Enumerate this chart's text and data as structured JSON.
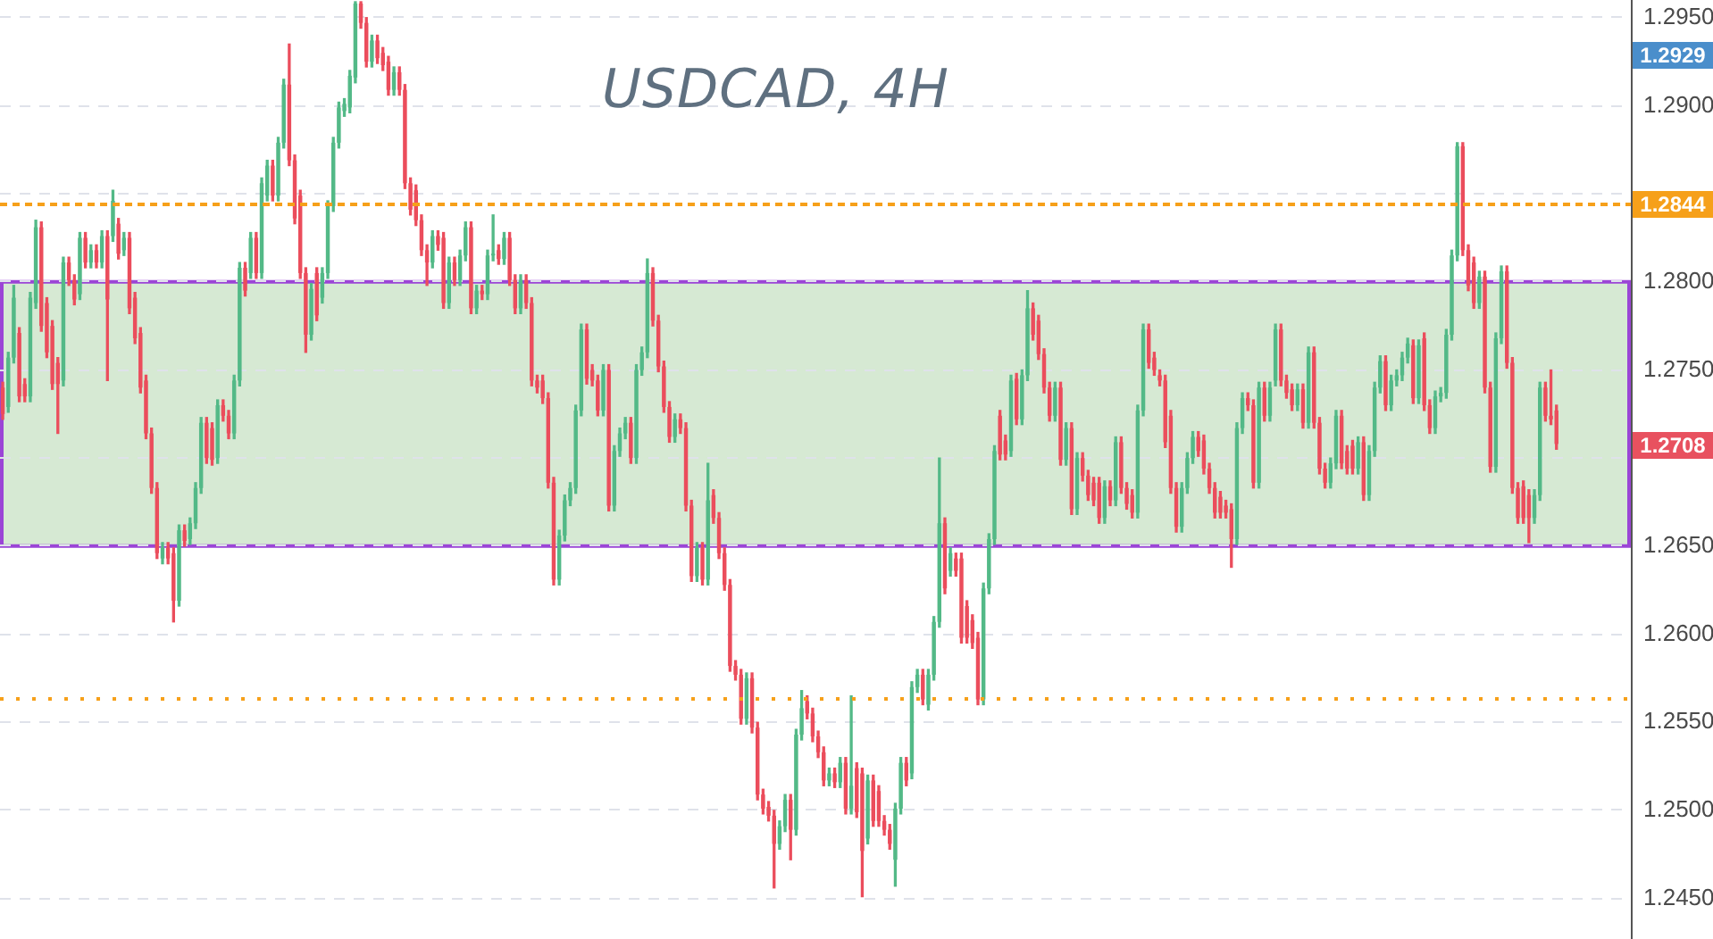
{
  "chart_data": {
    "type": "candlestick",
    "title": "USDCAD, 4H",
    "categories": [
      null,
      null,
      null,
      null,
      null,
      null,
      null,
      null,
      null,
      null,
      null,
      null,
      null,
      null,
      null,
      null,
      null,
      null,
      null,
      null,
      null,
      null,
      null,
      null,
      null,
      null,
      null,
      null,
      null,
      null,
      null,
      null,
      null,
      null,
      null,
      null,
      null,
      null,
      null,
      null,
      null,
      null,
      null,
      null,
      null,
      null,
      null,
      null,
      null,
      null,
      null,
      null,
      null,
      null,
      null,
      null,
      null,
      null,
      null,
      null,
      null,
      null,
      null,
      null,
      null,
      null,
      null,
      null,
      null,
      null,
      null,
      null,
      null,
      null,
      null,
      null,
      null,
      null,
      null,
      null,
      null,
      null,
      null,
      null,
      null,
      null,
      null,
      null,
      null,
      null,
      null,
      null,
      null,
      null,
      null,
      null,
      null,
      null,
      null,
      null,
      null,
      null,
      null,
      null,
      null,
      null,
      null,
      null,
      null,
      null,
      null,
      null,
      null,
      null,
      null,
      null,
      null,
      null,
      null,
      null,
      null,
      null,
      null,
      null,
      null,
      null,
      null,
      null,
      null,
      null,
      null,
      null,
      null,
      null,
      null,
      null,
      null,
      null,
      null,
      null,
      null,
      null,
      null,
      null,
      null,
      null,
      null,
      null,
      null,
      null,
      null,
      null,
      null,
      null,
      null,
      null,
      null,
      null,
      null,
      null,
      null,
      null,
      null,
      null,
      null,
      null,
      null,
      null,
      null,
      null,
      null,
      null,
      null,
      null,
      null,
      null,
      null,
      null,
      null,
      null,
      null,
      null,
      null,
      null,
      null,
      null,
      null,
      null,
      null,
      null,
      null,
      null,
      null,
      null,
      null,
      null,
      null,
      null,
      null,
      null,
      null,
      null,
      null,
      null,
      null,
      null,
      null,
      null,
      null,
      null,
      null,
      null,
      null,
      null,
      null,
      null,
      null,
      null,
      null,
      null,
      null,
      null,
      null,
      null,
      null,
      null,
      null,
      null,
      null,
      null,
      null,
      null,
      null,
      null,
      null,
      null,
      null,
      null,
      null,
      null,
      null,
      null,
      null,
      null,
      null,
      null,
      null,
      null,
      null,
      null,
      null,
      null,
      null,
      null,
      null,
      null,
      null,
      null,
      null,
      null,
      null,
      null,
      null,
      null,
      null,
      null,
      null,
      null,
      null,
      null,
      null,
      null,
      null,
      null,
      null,
      null,
      null,
      null,
      null,
      null,
      null,
      null,
      null,
      null,
      null,
      null,
      null,
      null,
      null,
      null,
      null,
      null,
      null,
      null,
      null,
      null
    ],
    "ohlc": [
      [
        1.274,
        1.2743,
        1.2722,
        1.2725
      ],
      [
        1.2729,
        1.276,
        1.2726,
        1.2757
      ],
      [
        1.2757,
        1.2798,
        1.2754,
        1.2791
      ],
      [
        1.2771,
        1.2774,
        1.2732,
        1.2735
      ],
      [
        1.2742,
        1.2745,
        1.2732,
        1.2735
      ],
      [
        1.2735,
        1.2794,
        1.2732,
        1.2791
      ],
      [
        1.2788,
        1.2835,
        1.2785,
        1.2831
      ],
      [
        1.2831,
        1.2834,
        1.2772,
        1.2775
      ],
      [
        1.2788,
        1.2791,
        1.2757,
        1.276
      ],
      [
        1.2775,
        1.2778,
        1.2739,
        1.2742
      ],
      [
        1.2754,
        1.2757,
        1.2714,
        1.2742
      ],
      [
        1.2744,
        1.2814,
        1.2741,
        1.2811
      ],
      [
        1.2811,
        1.2814,
        1.2798,
        1.2801
      ],
      [
        1.2801,
        1.2804,
        1.2787,
        1.279
      ],
      [
        1.2793,
        1.2828,
        1.279,
        1.2825
      ],
      [
        1.2825,
        1.2828,
        1.2808,
        1.2811
      ],
      [
        1.2811,
        1.2821,
        1.2808,
        1.2818
      ],
      [
        1.2818,
        1.2821,
        1.2808,
        1.2811
      ],
      [
        1.2811,
        1.2829,
        1.2808,
        1.2826
      ],
      [
        1.2826,
        1.2829,
        1.2744,
        1.279
      ],
      [
        1.2826,
        1.2852,
        1.2823,
        1.2846
      ],
      [
        1.2833,
        1.2836,
        1.2813,
        1.2816
      ],
      [
        1.2818,
        1.2828,
        1.2815,
        1.2825
      ],
      [
        1.2825,
        1.2828,
        1.2782,
        1.2785
      ],
      [
        1.2791,
        1.2794,
        1.2765,
        1.2768
      ],
      [
        1.2771,
        1.2774,
        1.2737,
        1.274
      ],
      [
        1.2744,
        1.2747,
        1.2711,
        1.2714
      ],
      [
        1.2714,
        1.2717,
        1.268,
        1.2683
      ],
      [
        1.2683,
        1.2686,
        1.2643,
        1.2646
      ],
      [
        1.2643,
        1.2652,
        1.264,
        1.2649
      ],
      [
        1.2649,
        1.2652,
        1.264,
        1.2643
      ],
      [
        1.2646,
        1.2649,
        1.2607,
        1.2619
      ],
      [
        1.2619,
        1.2662,
        1.2616,
        1.2659
      ],
      [
        1.2659,
        1.2662,
        1.265,
        1.2653
      ],
      [
        1.2654,
        1.2666,
        1.2651,
        1.2663
      ],
      [
        1.2663,
        1.2686,
        1.266,
        1.2683
      ],
      [
        1.2683,
        1.2723,
        1.268,
        1.272
      ],
      [
        1.272,
        1.2723,
        1.2697,
        1.27
      ],
      [
        1.2717,
        1.272,
        1.2696,
        1.2699
      ],
      [
        1.27,
        1.2733,
        1.2697,
        1.273
      ],
      [
        1.273,
        1.2733,
        1.2721,
        1.2724
      ],
      [
        1.2724,
        1.2727,
        1.2711,
        1.2714
      ],
      [
        1.2714,
        1.2747,
        1.2711,
        1.2744
      ],
      [
        1.2744,
        1.2811,
        1.2741,
        1.2808
      ],
      [
        1.2808,
        1.2811,
        1.2792,
        1.2795
      ],
      [
        1.2805,
        1.2828,
        1.2802,
        1.2825
      ],
      [
        1.2825,
        1.2828,
        1.2802,
        1.2805
      ],
      [
        1.2805,
        1.2859,
        1.2802,
        1.2856
      ],
      [
        1.2849,
        1.2869,
        1.2846,
        1.2866
      ],
      [
        1.2866,
        1.2869,
        1.2846,
        1.2849
      ],
      [
        1.2849,
        1.2882,
        1.2846,
        1.2879
      ],
      [
        1.2879,
        1.2915,
        1.2876,
        1.2912
      ],
      [
        1.2912,
        1.2935,
        1.2866,
        1.2869
      ],
      [
        1.2869,
        1.2872,
        1.2833,
        1.2836
      ],
      [
        1.2849,
        1.2852,
        1.2802,
        1.2805
      ],
      [
        1.2805,
        1.2808,
        1.276,
        1.277
      ],
      [
        1.277,
        1.2799,
        1.2767,
        1.2796
      ],
      [
        1.2805,
        1.2808,
        1.2778,
        1.2781
      ],
      [
        1.2791,
        1.2808,
        1.2788,
        1.2805
      ],
      [
        1.2805,
        1.2846,
        1.2802,
        1.2843
      ],
      [
        1.2843,
        1.2882,
        1.284,
        1.2879
      ],
      [
        1.2879,
        1.2902,
        1.2876,
        1.2899
      ],
      [
        1.2897,
        1.2904,
        1.2894,
        1.2901
      ],
      [
        1.2899,
        1.292,
        1.2896,
        1.2917
      ],
      [
        1.2916,
        1.2959,
        1.2913,
        1.2958
      ],
      [
        1.2958,
        1.2959,
        1.2944,
        1.2947
      ],
      [
        1.2947,
        1.295,
        1.2922,
        1.2925
      ],
      [
        1.2925,
        1.294,
        1.2922,
        1.2937
      ],
      [
        1.2937,
        1.294,
        1.2924,
        1.2927
      ],
      [
        1.293,
        1.2933,
        1.292,
        1.2923
      ],
      [
        1.2925,
        1.2928,
        1.2906,
        1.2909
      ],
      [
        1.2909,
        1.2922,
        1.2906,
        1.2919
      ],
      [
        1.2919,
        1.2922,
        1.2906,
        1.2909
      ],
      [
        1.2909,
        1.2912,
        1.2853,
        1.2856
      ],
      [
        1.2856,
        1.2859,
        1.2838,
        1.2841
      ],
      [
        1.2852,
        1.2855,
        1.2832,
        1.2835
      ],
      [
        1.2835,
        1.2838,
        1.2815,
        1.2818
      ],
      [
        1.2818,
        1.2821,
        1.2798,
        1.2811
      ],
      [
        1.2811,
        1.2829,
        1.2808,
        1.2826
      ],
      [
        1.2826,
        1.2829,
        1.2818,
        1.2821
      ],
      [
        1.2825,
        1.2828,
        1.2785,
        1.2788
      ],
      [
        1.2788,
        1.2814,
        1.2785,
        1.2811
      ],
      [
        1.2811,
        1.2814,
        1.2798,
        1.2801
      ],
      [
        1.2801,
        1.2818,
        1.2798,
        1.2815
      ],
      [
        1.2815,
        1.2834,
        1.2812,
        1.2831
      ],
      [
        1.2831,
        1.2834,
        1.2782,
        1.2785
      ],
      [
        1.2785,
        1.2798,
        1.2782,
        1.2795
      ],
      [
        1.2795,
        1.2798,
        1.279,
        1.2793
      ],
      [
        1.2793,
        1.2818,
        1.279,
        1.2815
      ],
      [
        1.2815,
        1.2838,
        1.2812,
        1.2816
      ],
      [
        1.2818,
        1.2821,
        1.281,
        1.2813
      ],
      [
        1.2813,
        1.2828,
        1.281,
        1.2825
      ],
      [
        1.2825,
        1.2828,
        1.2798,
        1.2801
      ],
      [
        1.2801,
        1.2804,
        1.2782,
        1.2785
      ],
      [
        1.2785,
        1.2804,
        1.2782,
        1.2801
      ],
      [
        1.2801,
        1.2804,
        1.2785,
        1.2788
      ],
      [
        1.2788,
        1.2791,
        1.2741,
        1.2744
      ],
      [
        1.2744,
        1.2747,
        1.2737,
        1.274
      ],
      [
        1.2744,
        1.2747,
        1.2731,
        1.2734
      ],
      [
        1.2734,
        1.2737,
        1.2683,
        1.2686
      ],
      [
        1.2686,
        1.2689,
        1.2628,
        1.2631
      ],
      [
        1.2631,
        1.2659,
        1.2628,
        1.2656
      ],
      [
        1.2656,
        1.2679,
        1.2653,
        1.2676
      ],
      [
        1.2676,
        1.2686,
        1.2673,
        1.2683
      ],
      [
        1.2683,
        1.273,
        1.268,
        1.2727
      ],
      [
        1.2727,
        1.2776,
        1.2724,
        1.2773
      ],
      [
        1.2773,
        1.2776,
        1.2742,
        1.2745
      ],
      [
        1.275,
        1.2753,
        1.2741,
        1.2744
      ],
      [
        1.2744,
        1.2747,
        1.2724,
        1.2727
      ],
      [
        1.2727,
        1.2753,
        1.2724,
        1.275
      ],
      [
        1.275,
        1.2753,
        1.267,
        1.2673
      ],
      [
        1.2673,
        1.2707,
        1.267,
        1.2704
      ],
      [
        1.2704,
        1.2717,
        1.2701,
        1.2714
      ],
      [
        1.2714,
        1.2723,
        1.2711,
        1.272
      ],
      [
        1.272,
        1.2723,
        1.2697,
        1.27
      ],
      [
        1.27,
        1.2753,
        1.2697,
        1.275
      ],
      [
        1.275,
        1.2763,
        1.2747,
        1.276
      ],
      [
        1.276,
        1.2813,
        1.2757,
        1.2805
      ],
      [
        1.2805,
        1.2808,
        1.2775,
        1.2778
      ],
      [
        1.2778,
        1.2781,
        1.2749,
        1.2752
      ],
      [
        1.2752,
        1.2755,
        1.2726,
        1.2729
      ],
      [
        1.2729,
        1.2732,
        1.2709,
        1.2712
      ],
      [
        1.2712,
        1.2725,
        1.2709,
        1.2722
      ],
      [
        1.2722,
        1.2725,
        1.2714,
        1.2717
      ],
      [
        1.2717,
        1.272,
        1.267,
        1.2673
      ],
      [
        1.2673,
        1.2676,
        1.263,
        1.2633
      ],
      [
        1.2633,
        1.2652,
        1.263,
        1.2649
      ],
      [
        1.2649,
        1.2652,
        1.2628,
        1.2631
      ],
      [
        1.2631,
        1.2697,
        1.2628,
        1.2676
      ],
      [
        1.2679,
        1.2682,
        1.2663,
        1.2666
      ],
      [
        1.2666,
        1.2669,
        1.2643,
        1.2646
      ],
      [
        1.2646,
        1.2649,
        1.2625,
        1.2628
      ],
      [
        1.2628,
        1.2631,
        1.2579,
        1.2582
      ],
      [
        1.2582,
        1.2585,
        1.2574,
        1.2577
      ],
      [
        1.2577,
        1.258,
        1.2549,
        1.2552
      ],
      [
        1.2552,
        1.2578,
        1.2549,
        1.2575
      ],
      [
        1.2575,
        1.2578,
        1.2544,
        1.2547
      ],
      [
        1.2547,
        1.255,
        1.2506,
        1.2509
      ],
      [
        1.2509,
        1.2512,
        1.2498,
        1.2501
      ],
      [
        1.2502,
        1.2505,
        1.2494,
        1.2497
      ],
      [
        1.2497,
        1.25,
        1.2456,
        1.2481
      ],
      [
        1.2481,
        1.2494,
        1.2478,
        1.2491
      ],
      [
        1.2491,
        1.2509,
        1.2488,
        1.2506
      ],
      [
        1.2506,
        1.2509,
        1.2472,
        1.2489
      ],
      [
        1.2489,
        1.2546,
        1.2486,
        1.2543
      ],
      [
        1.2543,
        1.2568,
        1.254,
        1.2558
      ],
      [
        1.2562,
        1.2565,
        1.2552,
        1.2555
      ],
      [
        1.2555,
        1.2558,
        1.2539,
        1.2542
      ],
      [
        1.2542,
        1.2545,
        1.253,
        1.2533
      ],
      [
        1.2533,
        1.2536,
        1.2514,
        1.2517
      ],
      [
        1.2517,
        1.2524,
        1.2514,
        1.2521
      ],
      [
        1.2521,
        1.2524,
        1.2513,
        1.2516
      ],
      [
        1.2516,
        1.253,
        1.2513,
        1.2527
      ],
      [
        1.2527,
        1.253,
        1.2498,
        1.2501
      ],
      [
        1.2501,
        1.2565,
        1.2498,
        1.2514
      ],
      [
        1.2524,
        1.2527,
        1.2496,
        1.2499
      ],
      [
        1.2521,
        1.2524,
        1.2451,
        1.2477
      ],
      [
        1.2484,
        1.252,
        1.2481,
        1.2517
      ],
      [
        1.2517,
        1.252,
        1.2491,
        1.2494
      ],
      [
        1.2511,
        1.2514,
        1.2491,
        1.2494
      ],
      [
        1.2494,
        1.2497,
        1.2486,
        1.2489
      ],
      [
        1.2489,
        1.2492,
        1.2478,
        1.2481
      ],
      [
        1.2472,
        1.2504,
        1.2457,
        1.2501
      ],
      [
        1.2501,
        1.253,
        1.2498,
        1.2527
      ],
      [
        1.2527,
        1.253,
        1.2514,
        1.2517
      ],
      [
        1.2521,
        1.2573,
        1.2518,
        1.257
      ],
      [
        1.257,
        1.258,
        1.2567,
        1.2577
      ],
      [
        1.2577,
        1.258,
        1.256,
        1.2563
      ],
      [
        1.256,
        1.258,
        1.2557,
        1.2577
      ],
      [
        1.2577,
        1.261,
        1.2574,
        1.2607
      ],
      [
        1.2607,
        1.27,
        1.2604,
        1.2663
      ],
      [
        1.2663,
        1.2666,
        1.2623,
        1.2626
      ],
      [
        1.2636,
        1.2649,
        1.2633,
        1.2646
      ],
      [
        1.2643,
        1.2646,
        1.2633,
        1.2636
      ],
      [
        1.2643,
        1.2646,
        1.2595,
        1.2598
      ],
      [
        1.2616,
        1.2619,
        1.2595,
        1.2598
      ],
      [
        1.2608,
        1.2611,
        1.2592,
        1.2595
      ],
      [
        1.2598,
        1.2601,
        1.256,
        1.2563
      ],
      [
        1.2563,
        1.2629,
        1.256,
        1.2626
      ],
      [
        1.2626,
        1.2657,
        1.2623,
        1.2654
      ],
      [
        1.2654,
        1.2707,
        1.2651,
        1.2704
      ],
      [
        1.2724,
        1.2727,
        1.2699,
        1.2702
      ],
      [
        1.271,
        1.2713,
        1.2699,
        1.2702
      ],
      [
        1.2704,
        1.2747,
        1.2701,
        1.2744
      ],
      [
        1.2745,
        1.2748,
        1.2719,
        1.2722
      ],
      [
        1.2722,
        1.275,
        1.2719,
        1.2747
      ],
      [
        1.2747,
        1.2795,
        1.2744,
        1.2785
      ],
      [
        1.2785,
        1.2788,
        1.2767,
        1.277
      ],
      [
        1.2778,
        1.2781,
        1.2756,
        1.2759
      ],
      [
        1.2759,
        1.2762,
        1.2737,
        1.274
      ],
      [
        1.274,
        1.2743,
        1.2721,
        1.2724
      ],
      [
        1.2724,
        1.2743,
        1.2721,
        1.274
      ],
      [
        1.274,
        1.2743,
        1.2696,
        1.2699
      ],
      [
        1.2699,
        1.272,
        1.2696,
        1.2717
      ],
      [
        1.2717,
        1.272,
        1.2668,
        1.2671
      ],
      [
        1.2671,
        1.2703,
        1.2668,
        1.27
      ],
      [
        1.27,
        1.2703,
        1.2687,
        1.269
      ],
      [
        1.269,
        1.2693,
        1.2676,
        1.2679
      ],
      [
        1.2686,
        1.2689,
        1.2673,
        1.2676
      ],
      [
        1.2686,
        1.2689,
        1.2663,
        1.2666
      ],
      [
        1.2666,
        1.2687,
        1.2663,
        1.2684
      ],
      [
        1.2684,
        1.2687,
        1.2673,
        1.2676
      ],
      [
        1.2676,
        1.2712,
        1.2673,
        1.2709
      ],
      [
        1.2709,
        1.2712,
        1.268,
        1.2683
      ],
      [
        1.2683,
        1.2686,
        1.2671,
        1.2674
      ],
      [
        1.2679,
        1.2682,
        1.2666,
        1.2669
      ],
      [
        1.2669,
        1.273,
        1.2666,
        1.2727
      ],
      [
        1.2727,
        1.2776,
        1.2724,
        1.2773
      ],
      [
        1.2773,
        1.2776,
        1.2751,
        1.2754
      ],
      [
        1.2757,
        1.276,
        1.2747,
        1.275
      ],
      [
        1.2747,
        1.275,
        1.2741,
        1.2744
      ],
      [
        1.2744,
        1.2747,
        1.2706,
        1.2709
      ],
      [
        1.2724,
        1.2727,
        1.268,
        1.2683
      ],
      [
        1.2683,
        1.2686,
        1.2658,
        1.2661
      ],
      [
        1.2661,
        1.2686,
        1.2658,
        1.2683
      ],
      [
        1.2683,
        1.2703,
        1.268,
        1.27
      ],
      [
        1.27,
        1.2715,
        1.2697,
        1.2712
      ],
      [
        1.2712,
        1.2715,
        1.2701,
        1.2704
      ],
      [
        1.271,
        1.2713,
        1.2691,
        1.2694
      ],
      [
        1.2694,
        1.2697,
        1.268,
        1.2683
      ],
      [
        1.2683,
        1.2686,
        1.2666,
        1.2669
      ],
      [
        1.2678,
        1.2681,
        1.2666,
        1.2669
      ],
      [
        1.2673,
        1.2676,
        1.2666,
        1.2669
      ],
      [
        1.2671,
        1.2674,
        1.2638,
        1.2654
      ],
      [
        1.2654,
        1.272,
        1.2651,
        1.2717
      ],
      [
        1.2717,
        1.2737,
        1.2714,
        1.2734
      ],
      [
        1.2734,
        1.2737,
        1.2727,
        1.273
      ],
      [
        1.273,
        1.2733,
        1.2683,
        1.2686
      ],
      [
        1.2686,
        1.2743,
        1.2683,
        1.274
      ],
      [
        1.274,
        1.2743,
        1.2721,
        1.2724
      ],
      [
        1.2724,
        1.2743,
        1.2721,
        1.274
      ],
      [
        1.2744,
        1.2776,
        1.2741,
        1.2773
      ],
      [
        1.2773,
        1.2776,
        1.2741,
        1.2744
      ],
      [
        1.2744,
        1.2747,
        1.2734,
        1.2737
      ],
      [
        1.2739,
        1.2742,
        1.2727,
        1.273
      ],
      [
        1.273,
        1.2742,
        1.2727,
        1.2739
      ],
      [
        1.2739,
        1.2742,
        1.2717,
        1.272
      ],
      [
        1.272,
        1.2763,
        1.2717,
        1.276
      ],
      [
        1.276,
        1.2763,
        1.2717,
        1.272
      ],
      [
        1.272,
        1.2723,
        1.2691,
        1.2694
      ],
      [
        1.2694,
        1.2697,
        1.2683,
        1.2686
      ],
      [
        1.2686,
        1.27,
        1.2683,
        1.2697
      ],
      [
        1.2697,
        1.2727,
        1.2694,
        1.2724
      ],
      [
        1.2724,
        1.2727,
        1.2694,
        1.2697
      ],
      [
        1.2704,
        1.2707,
        1.2691,
        1.2694
      ],
      [
        1.2707,
        1.271,
        1.2691,
        1.2694
      ],
      [
        1.2694,
        1.2712,
        1.2691,
        1.2709
      ],
      [
        1.2709,
        1.2712,
        1.2676,
        1.2679
      ],
      [
        1.2679,
        1.2707,
        1.2676,
        1.2704
      ],
      [
        1.2704,
        1.2743,
        1.2701,
        1.274
      ],
      [
        1.274,
        1.2758,
        1.2737,
        1.2755
      ],
      [
        1.2755,
        1.2758,
        1.2727,
        1.273
      ],
      [
        1.273,
        1.2747,
        1.2727,
        1.2744
      ],
      [
        1.2744,
        1.275,
        1.2741,
        1.2747
      ],
      [
        1.2747,
        1.276,
        1.2744,
        1.2757
      ],
      [
        1.2757,
        1.2768,
        1.2754,
        1.2765
      ],
      [
        1.2764,
        1.2767,
        1.2731,
        1.2734
      ],
      [
        1.2734,
        1.2767,
        1.2731,
        1.2764
      ],
      [
        1.2768,
        1.2771,
        1.2727,
        1.273
      ],
      [
        1.273,
        1.2733,
        1.2714,
        1.2717
      ],
      [
        1.2717,
        1.2738,
        1.2714,
        1.2735
      ],
      [
        1.2735,
        1.274,
        1.2732,
        1.2737
      ],
      [
        1.2737,
        1.2773,
        1.2734,
        1.277
      ],
      [
        1.277,
        1.2818,
        1.2767,
        1.2815
      ],
      [
        1.2815,
        1.2879,
        1.2812,
        1.2877
      ],
      [
        1.2877,
        1.2879,
        1.2815,
        1.2818
      ],
      [
        1.2818,
        1.2821,
        1.2795,
        1.2798
      ],
      [
        1.2811,
        1.2814,
        1.2785,
        1.2788
      ],
      [
        1.2788,
        1.2806,
        1.2785,
        1.2803
      ],
      [
        1.2803,
        1.2806,
        1.2737,
        1.274
      ],
      [
        1.274,
        1.2743,
        1.2692,
        1.2695
      ],
      [
        1.2695,
        1.2771,
        1.2692,
        1.2768
      ],
      [
        1.2768,
        1.2809,
        1.2765,
        1.2806
      ],
      [
        1.2806,
        1.2809,
        1.2751,
        1.2754
      ],
      [
        1.2754,
        1.2757,
        1.268,
        1.2683
      ],
      [
        1.2683,
        1.2686,
        1.2663,
        1.2666
      ],
      [
        1.2684,
        1.2687,
        1.2663,
        1.2666
      ],
      [
        1.2679,
        1.2682,
        1.2652,
        1.2666
      ],
      [
        1.2666,
        1.2682,
        1.2663,
        1.2679
      ],
      [
        1.2679,
        1.2743,
        1.2676,
        1.274
      ],
      [
        1.274,
        1.2743,
        1.2721,
        1.2724
      ],
      [
        1.2724,
        1.275,
        1.2719,
        1.2722
      ],
      [
        1.2727,
        1.273,
        1.2705,
        1.2708
      ],
      null,
      null,
      null,
      null,
      null,
      null,
      null,
      null,
      null,
      null,
      null,
      null,
      null
    ],
    "ylim": [
      1.2427,
      1.296
    ],
    "yticks": [
      {
        "value": 1.245,
        "label": "1.2450"
      },
      {
        "value": 1.25,
        "label": "1.2500"
      },
      {
        "value": 1.255,
        "label": "1.2550"
      },
      {
        "value": 1.26,
        "label": "1.2600"
      },
      {
        "value": 1.265,
        "label": "1.2650"
      },
      {
        "value": 1.27,
        "label": null
      },
      {
        "value": 1.275,
        "label": "1.2750"
      },
      {
        "value": 1.28,
        "label": "1.2800"
      },
      {
        "value": 1.285,
        "label": null
      },
      {
        "value": 1.29,
        "label": "1.2900"
      },
      {
        "value": 1.295,
        "label": "1.2950"
      }
    ],
    "grid": "y",
    "tick_labels": "y",
    "ref_lines": [
      {
        "axis": "y",
        "value": 1.2844,
        "label": "1.2844",
        "color": "#f6a01a",
        "line_style": "dashed"
      },
      {
        "axis": "y",
        "value": 1.2564,
        "color": "#f6a01a",
        "line_style": "dotted"
      }
    ],
    "bands": [
      {
        "axis": "y",
        "from": 1.265,
        "to": 1.28,
        "color": "#d6e9d3"
      }
    ],
    "annotations": [
      "1.2929",
      "1.2708"
    ]
  }
}
